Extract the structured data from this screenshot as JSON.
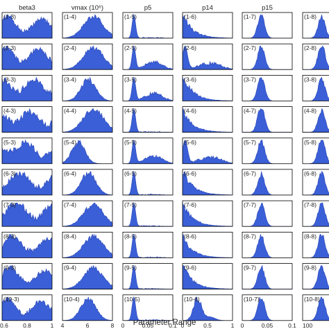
{
  "chart_data": {
    "type": "histogram-grid",
    "fill_color": "#3b5fd6",
    "edge_color": "#2a47b8",
    "frame_color": "#000000",
    "xlabel": "Parameter Range",
    "grid": false,
    "columns": [
      {
        "title": "beta3",
        "col": 3,
        "xlim": [
          0.6,
          1
        ],
        "ticks": [
          "0.6",
          "0.8",
          "1"
        ],
        "profiles": [
          "beta3_wide",
          "beta3_wide",
          "beta3_wide",
          "beta3_wide",
          "beta3_wide",
          "beta3_wide",
          "beta3_wide",
          "beta3_wide",
          "beta3_wide",
          "beta3_wide"
        ]
      },
      {
        "title": "vmax (10⁶)",
        "col": 4,
        "xlim": [
          2,
          8
        ],
        "ticks": [
          "4",
          "6",
          "8"
        ],
        "profiles": [
          "vmax_right",
          "vmax_right",
          "vmax_mid",
          "vmax_right",
          "vmax_left",
          "vmax_mid",
          "vmax_right",
          "vmax_right",
          "vmax_right",
          "vmax_mid"
        ]
      },
      {
        "title": "p5",
        "col": 5,
        "xlim": [
          0,
          0.1
        ],
        "ticks": [
          "0",
          "0.05",
          "0.1"
        ],
        "profiles": [
          "spike_left",
          "spike_bump",
          "spike_bump",
          "spike_left",
          "spike_bump",
          "spike_left",
          "spike_left",
          "spike_left",
          "spike_left",
          "spike_left"
        ]
      },
      {
        "title": "p14",
        "col": 6,
        "xlim": [
          0,
          1
        ],
        "ticks": [
          "0",
          "0.5",
          "1"
        ],
        "profiles": [
          "decay",
          "bimodal",
          "decay",
          "decay",
          "bimodal",
          "decay",
          "decay",
          "decay",
          "decay",
          "mid_peak"
        ]
      },
      {
        "title": "p15",
        "col": 7,
        "xlim": [
          0,
          0.1
        ],
        "ticks": [
          "0",
          "0.05",
          "0.1"
        ],
        "profiles": [
          "peak",
          "peak",
          "peak",
          "peak",
          "peak",
          "peak",
          "peak",
          "peak",
          "peak",
          "peak"
        ]
      },
      {
        "title": "",
        "col": 8,
        "xlim": [
          100,
          150
        ],
        "ticks": [
          "100",
          "",
          ""
        ],
        "profiles": [
          "peak",
          "peak",
          "peak",
          "peak",
          "peak",
          "peak",
          "peak",
          "peak",
          "peak",
          "peak"
        ]
      }
    ],
    "rows": [
      1,
      2,
      3,
      4,
      5,
      6,
      7,
      8,
      9,
      10
    ]
  }
}
